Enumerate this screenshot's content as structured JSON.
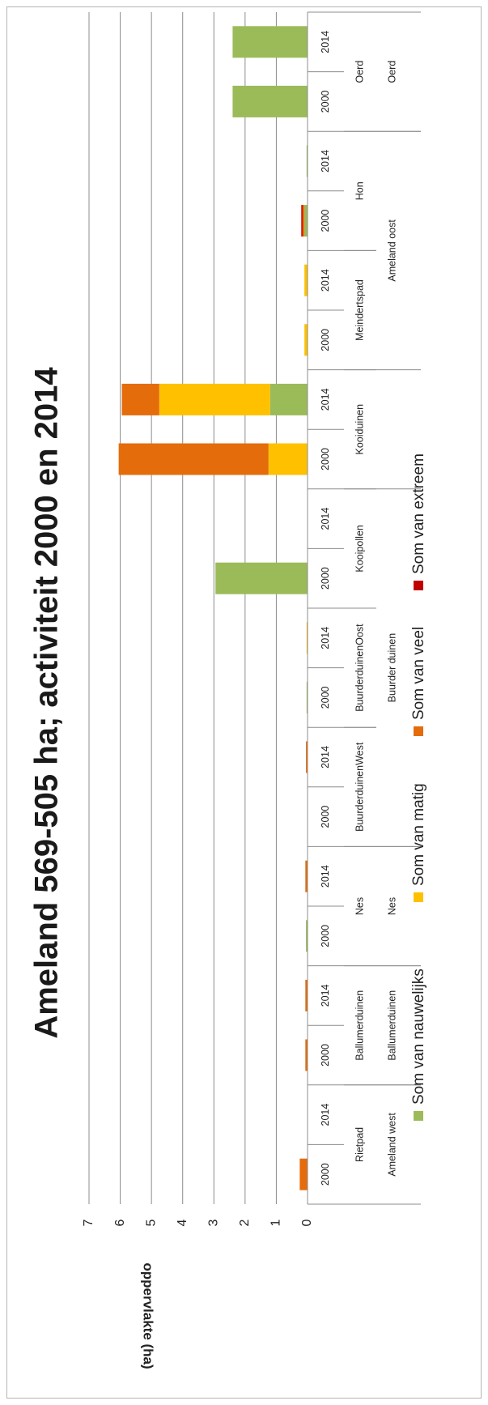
{
  "chart_data": {
    "type": "bar",
    "stacked": true,
    "orientation": "rotated-90",
    "title": "Ameland 569-505 ha; activiteit 2000 en 2014",
    "ylabel": "oppervlakte (ha)",
    "ylim": [
      0,
      7
    ],
    "yticks": [
      "0",
      "1",
      "2",
      "3",
      "4",
      "5",
      "6",
      "7"
    ],
    "grid": true,
    "legend_position": "bottom",
    "categories": [
      {
        "year": "2000",
        "sub": "Rietpad",
        "group": "Ameland west"
      },
      {
        "year": "2014",
        "sub": "Rietpad",
        "group": "Ameland west"
      },
      {
        "year": "2000",
        "sub": "Ballumerduinen",
        "group": "Ballumerduinen"
      },
      {
        "year": "2014",
        "sub": "Ballumerduinen",
        "group": "Ballumerduinen"
      },
      {
        "year": "2000",
        "sub": "Nes",
        "group": "Nes"
      },
      {
        "year": "2014",
        "sub": "Nes",
        "group": "Nes"
      },
      {
        "year": "2000",
        "sub": "BuurderduinenWest",
        "group": "Buurder duinen"
      },
      {
        "year": "2014",
        "sub": "BuurderduinenWest",
        "group": "Buurder duinen"
      },
      {
        "year": "2000",
        "sub": "BuurderduinenOost",
        "group": "Buurder duinen"
      },
      {
        "year": "2014",
        "sub": "BuurderduinenOost",
        "group": "Buurder duinen"
      },
      {
        "year": "2000",
        "sub": "Kooipollen",
        "group": "Buurder duinen"
      },
      {
        "year": "2014",
        "sub": "Kooipollen",
        "group": "Buurder duinen"
      },
      {
        "year": "2000",
        "sub": "Kooiduinen",
        "group": ""
      },
      {
        "year": "2014",
        "sub": "Kooiduinen",
        "group": ""
      },
      {
        "year": "2000",
        "sub": "Meindertspad",
        "group": "Ameland oost"
      },
      {
        "year": "2014",
        "sub": "Meindertspad",
        "group": "Ameland oost"
      },
      {
        "year": "2000",
        "sub": "Hon",
        "group": "Ameland oost"
      },
      {
        "year": "2014",
        "sub": "Hon",
        "group": "Ameland oost"
      },
      {
        "year": "2000",
        "sub": "Oerd",
        "group": "Oerd"
      },
      {
        "year": "2014",
        "sub": "Oerd",
        "group": "Oerd"
      }
    ],
    "sub_labels": [
      {
        "text": "Rietpad",
        "from": 0,
        "to": 1
      },
      {
        "text": "Ballumerduinen",
        "from": 2,
        "to": 3
      },
      {
        "text": "Nes",
        "from": 4,
        "to": 5
      },
      {
        "text": "BuurderduinenWest",
        "from": 6,
        "to": 7
      },
      {
        "text": "BuurderduinenOost",
        "from": 8,
        "to": 9
      },
      {
        "text": "Kooipollen",
        "from": 10,
        "to": 11
      },
      {
        "text": "Kooiduinen",
        "from": 12,
        "to": 13
      },
      {
        "text": "Meindertspad",
        "from": 14,
        "to": 15
      },
      {
        "text": "Hon",
        "from": 16,
        "to": 17
      },
      {
        "text": "Oerd",
        "from": 18,
        "to": 19
      }
    ],
    "group_labels": [
      {
        "text": "Ameland west",
        "from": 0,
        "to": 1
      },
      {
        "text": "Ballumerduinen",
        "from": 2,
        "to": 3
      },
      {
        "text": "Nes",
        "from": 4,
        "to": 5
      },
      {
        "text": "Buurder duinen",
        "from": 6,
        "to": 11
      },
      {
        "text": "Ameland oost",
        "from": 14,
        "to": 17
      },
      {
        "text": "Oerd",
        "from": 18,
        "to": 19
      }
    ],
    "series": [
      {
        "name": "Som van nauwelijks",
        "color": "#9bbb59",
        "values": [
          0,
          0,
          0,
          0,
          0.05,
          0,
          0,
          0,
          0.03,
          0,
          2.95,
          0,
          0,
          1.2,
          0,
          0,
          0.1,
          0.03,
          2.4,
          2.4
        ]
      },
      {
        "name": "Som van matig",
        "color": "#ffc000",
        "values": [
          0,
          0,
          0,
          0,
          0,
          0,
          0,
          0,
          0,
          0.03,
          0,
          0,
          1.25,
          3.55,
          0.1,
          0.1,
          0,
          0,
          0,
          0
        ]
      },
      {
        "name": "Som van veel",
        "color": "#e46c0a",
        "values": [
          0.25,
          0,
          0.07,
          0.07,
          0,
          0.07,
          0,
          0.05,
          0,
          0,
          0,
          0,
          4.8,
          1.2,
          0,
          0,
          0.07,
          0,
          0,
          0
        ]
      },
      {
        "name": "Som van extreem",
        "color": "#c00000",
        "values": [
          0,
          0,
          0,
          0,
          0,
          0,
          0,
          0,
          0,
          0,
          0,
          0,
          0,
          0,
          0,
          0,
          0.03,
          0,
          0,
          0
        ]
      }
    ]
  }
}
